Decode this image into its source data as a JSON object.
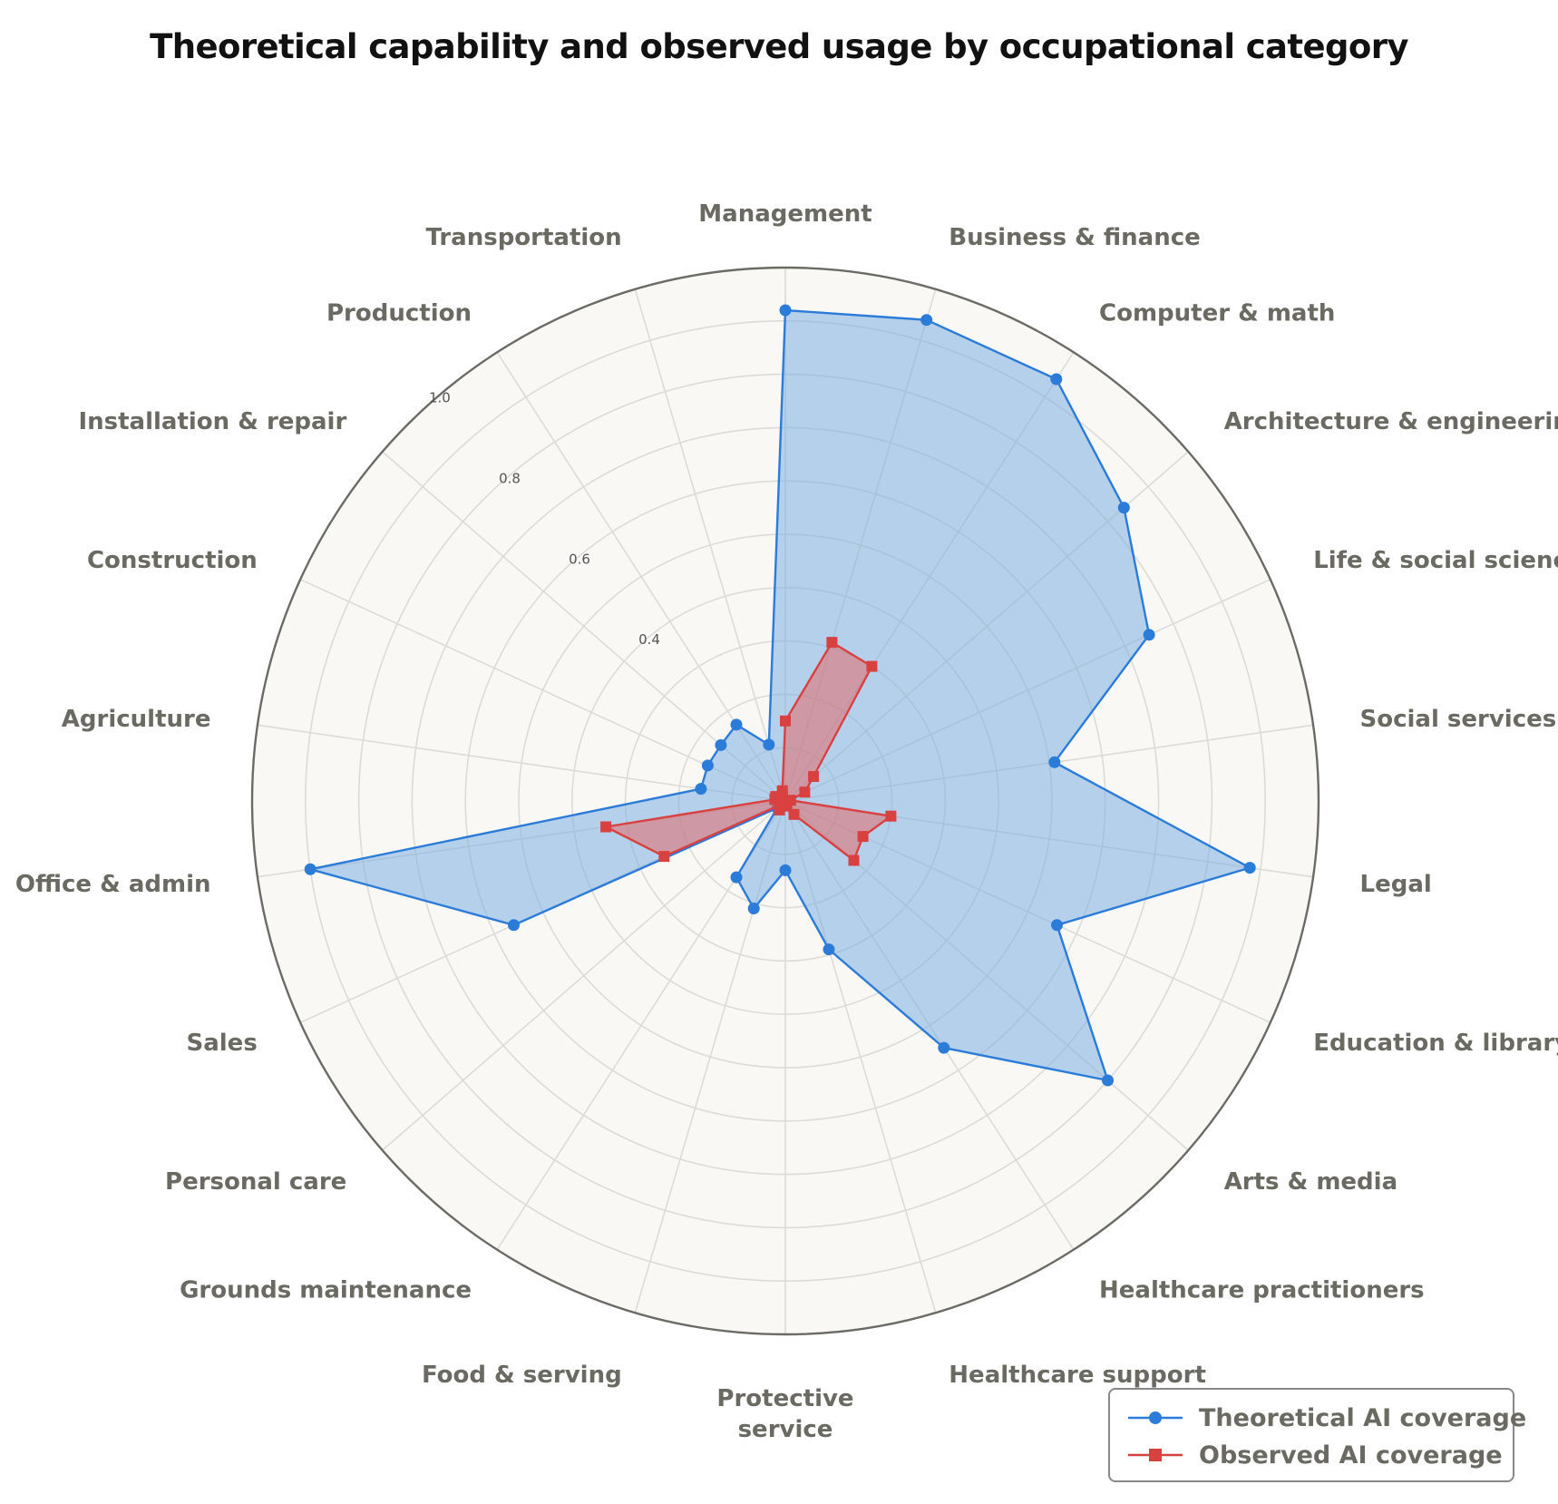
{
  "chart_data": {
    "type": "radar",
    "title": "Theoretical capability and observed usage by occupational category",
    "categories": [
      "Management",
      "Business & finance",
      "Computer & math",
      "Architecture & engineering",
      "Life & social sciences",
      "Social services",
      "Legal",
      "Education & library",
      "Arts & media",
      "Healthcare practitioners",
      "Healthcare support",
      "Protective service",
      "Food & serving",
      "Grounds maintenance",
      "Personal care",
      "Sales",
      "Office & admin",
      "Agriculture",
      "Construction",
      "Installation & repair",
      "Production",
      "Transportation"
    ],
    "series": [
      {
        "name": "Theoretical AI coverage",
        "color": "#2b7bd8",
        "fill": "#7eaee0",
        "marker": "circle",
        "values": [
          0.92,
          0.94,
          0.94,
          0.84,
          0.75,
          0.51,
          0.88,
          0.56,
          0.8,
          0.55,
          0.29,
          0.13,
          0.21,
          0.17,
          0.02,
          0.56,
          0.9,
          0.16,
          0.16,
          0.16,
          0.17,
          0.11
        ]
      },
      {
        "name": "Observed AI coverage",
        "color": "#d94040",
        "fill": "#e26b6b",
        "marker": "square",
        "values": [
          0.15,
          0.31,
          0.3,
          0.07,
          0.04,
          0.01,
          0.2,
          0.16,
          0.17,
          0.03,
          0.01,
          0.0,
          0.01,
          0.02,
          0.01,
          0.25,
          0.34,
          0.02,
          0.02,
          0.01,
          0.01,
          0.02
        ]
      }
    ],
    "rlim": [
      0,
      1
    ],
    "radial_ticks": [
      "0.4",
      "0.6",
      "0.8",
      "1.0"
    ],
    "grid": true,
    "legend_position": "bottom-right"
  }
}
